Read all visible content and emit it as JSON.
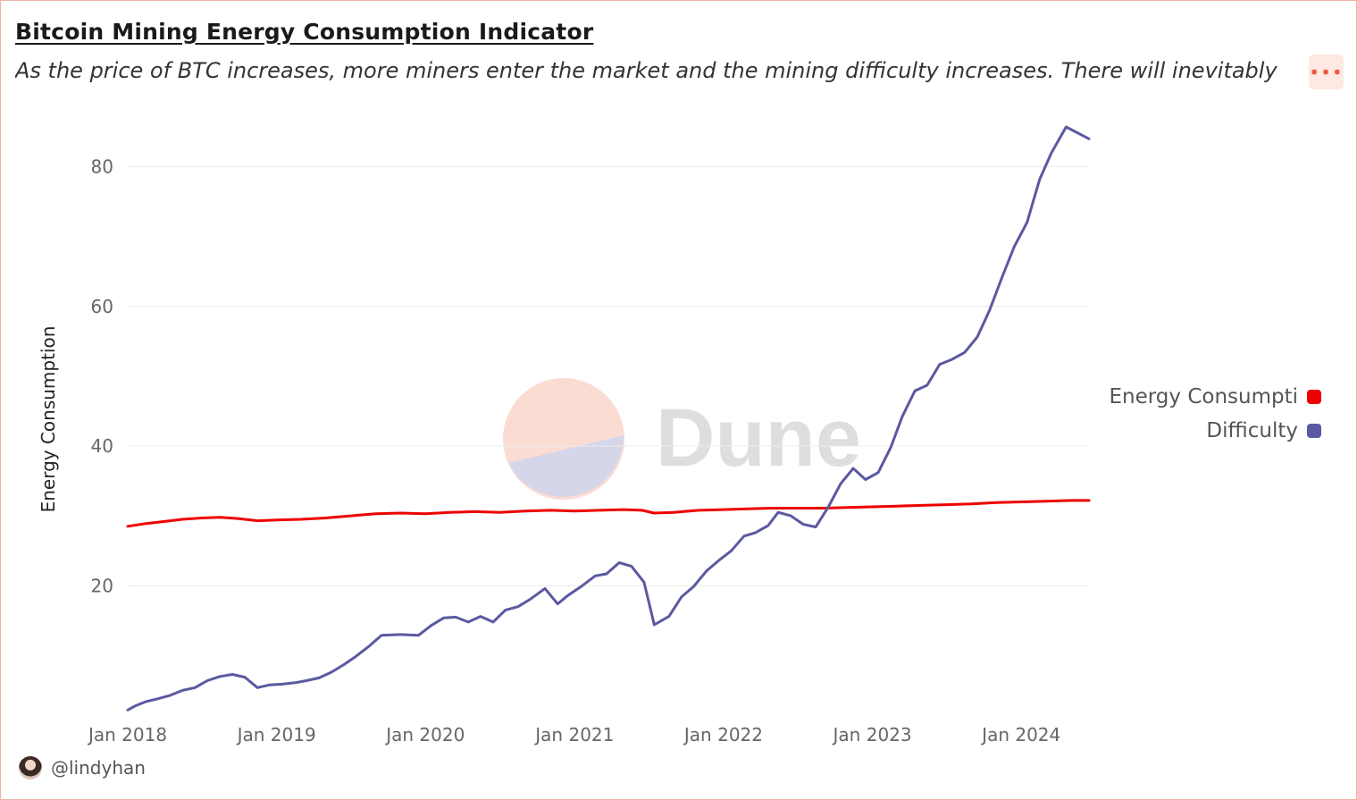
{
  "header": {
    "title": "Bitcoin Mining Energy Consumption Indicator",
    "subtitle": "As the price of BTC increases, more miners enter the market and the mining difficulty increases. There will inevitably",
    "menu_label": "•••"
  },
  "watermark": {
    "text": "Dune"
  },
  "footer": {
    "author": "@lindyhan"
  },
  "colors": {
    "accent": "#ee5a3b",
    "energy": "#ee0000",
    "difficulty": "#5a59a1",
    "grid": "#ececec",
    "axis_text": "#666666"
  },
  "chart_data": {
    "type": "line",
    "ylabel": "Energy Consumption",
    "ylim": [
      0,
      90
    ],
    "yticks": [
      20,
      40,
      60,
      80
    ],
    "x_ticks": [
      {
        "date": "2018-01-01",
        "label": "Jan 2018"
      },
      {
        "date": "2019-01-01",
        "label": "Jan 2019"
      },
      {
        "date": "2020-01-01",
        "label": "Jan 2020"
      },
      {
        "date": "2021-01-01",
        "label": "Jan 2021"
      },
      {
        "date": "2022-01-01",
        "label": "Jan 2022"
      },
      {
        "date": "2023-01-01",
        "label": "Jan 2023"
      },
      {
        "date": "2024-01-01",
        "label": "Jan 2024"
      }
    ],
    "grid": true,
    "legend_position": "right",
    "series": [
      {
        "name": "Energy Consumpti",
        "color": "#ee0000",
        "points": [
          [
            "2018-01-01",
            28.5
          ],
          [
            "2018-02-15",
            28.9
          ],
          [
            "2018-04-01",
            29.2
          ],
          [
            "2018-05-15",
            29.5
          ],
          [
            "2018-07-01",
            29.7
          ],
          [
            "2018-08-15",
            29.8
          ],
          [
            "2018-10-01",
            29.6
          ],
          [
            "2018-11-15",
            29.3
          ],
          [
            "2019-01-01",
            29.4
          ],
          [
            "2019-03-01",
            29.5
          ],
          [
            "2019-05-01",
            29.7
          ],
          [
            "2019-07-01",
            30.0
          ],
          [
            "2019-09-01",
            30.3
          ],
          [
            "2019-11-01",
            30.4
          ],
          [
            "2020-01-01",
            30.3
          ],
          [
            "2020-03-01",
            30.5
          ],
          [
            "2020-05-01",
            30.6
          ],
          [
            "2020-07-01",
            30.5
          ],
          [
            "2020-09-01",
            30.7
          ],
          [
            "2020-11-01",
            30.8
          ],
          [
            "2021-01-01",
            30.7
          ],
          [
            "2021-03-01",
            30.8
          ],
          [
            "2021-05-01",
            30.9
          ],
          [
            "2021-06-15",
            30.8
          ],
          [
            "2021-07-15",
            30.4
          ],
          [
            "2021-09-01",
            30.5
          ],
          [
            "2021-11-01",
            30.8
          ],
          [
            "2022-01-01",
            30.9
          ],
          [
            "2022-03-01",
            31.0
          ],
          [
            "2022-05-01",
            31.1
          ],
          [
            "2022-07-01",
            31.1
          ],
          [
            "2022-09-01",
            31.1
          ],
          [
            "2022-11-01",
            31.2
          ],
          [
            "2023-01-01",
            31.3
          ],
          [
            "2023-03-01",
            31.4
          ],
          [
            "2023-05-01",
            31.5
          ],
          [
            "2023-07-01",
            31.6
          ],
          [
            "2023-09-01",
            31.7
          ],
          [
            "2023-11-01",
            31.9
          ],
          [
            "2024-01-01",
            32.0
          ],
          [
            "2024-03-01",
            32.1
          ],
          [
            "2024-05-01",
            32.2
          ],
          [
            "2024-06-15",
            32.2
          ]
        ]
      },
      {
        "name": "Difficulty",
        "color": "#5a59a1",
        "points": [
          [
            "2018-01-01",
            2.2
          ],
          [
            "2018-01-20",
            2.8
          ],
          [
            "2018-02-15",
            3.4
          ],
          [
            "2018-03-15",
            3.8
          ],
          [
            "2018-04-15",
            4.3
          ],
          [
            "2018-05-15",
            5.0
          ],
          [
            "2018-06-15",
            5.4
          ],
          [
            "2018-07-15",
            6.4
          ],
          [
            "2018-08-15",
            7.0
          ],
          [
            "2018-09-15",
            7.3
          ],
          [
            "2018-10-15",
            6.9
          ],
          [
            "2018-11-15",
            5.4
          ],
          [
            "2018-12-15",
            5.8
          ],
          [
            "2019-01-15",
            5.9
          ],
          [
            "2019-02-15",
            6.1
          ],
          [
            "2019-03-15",
            6.4
          ],
          [
            "2019-04-15",
            6.8
          ],
          [
            "2019-05-15",
            7.6
          ],
          [
            "2019-06-15",
            8.7
          ],
          [
            "2019-07-15",
            9.9
          ],
          [
            "2019-08-15",
            11.3
          ],
          [
            "2019-09-15",
            12.9
          ],
          [
            "2019-11-01",
            13.0
          ],
          [
            "2019-12-15",
            12.9
          ],
          [
            "2020-01-15",
            14.3
          ],
          [
            "2020-02-15",
            15.4
          ],
          [
            "2020-03-15",
            15.5
          ],
          [
            "2020-04-15",
            14.8
          ],
          [
            "2020-05-15",
            15.6
          ],
          [
            "2020-06-15",
            14.8
          ],
          [
            "2020-07-15",
            16.5
          ],
          [
            "2020-08-15",
            17.0
          ],
          [
            "2020-09-15",
            18.1
          ],
          [
            "2020-10-20",
            19.6
          ],
          [
            "2020-11-20",
            17.4
          ],
          [
            "2020-12-15",
            18.6
          ],
          [
            "2021-01-15",
            19.8
          ],
          [
            "2021-02-20",
            21.4
          ],
          [
            "2021-03-20",
            21.7
          ],
          [
            "2021-04-20",
            23.3
          ],
          [
            "2021-05-20",
            22.8
          ],
          [
            "2021-06-20",
            20.5
          ],
          [
            "2021-07-15",
            14.4
          ],
          [
            "2021-08-20",
            15.6
          ],
          [
            "2021-09-20",
            18.4
          ],
          [
            "2021-10-20",
            19.9
          ],
          [
            "2021-11-20",
            22.1
          ],
          [
            "2021-12-20",
            23.6
          ],
          [
            "2022-01-20",
            25.0
          ],
          [
            "2022-02-20",
            27.1
          ],
          [
            "2022-03-20",
            27.6
          ],
          [
            "2022-04-20",
            28.6
          ],
          [
            "2022-05-15",
            30.5
          ],
          [
            "2022-06-15",
            30.0
          ],
          [
            "2022-07-15",
            28.8
          ],
          [
            "2022-08-15",
            28.4
          ],
          [
            "2022-09-15",
            31.3
          ],
          [
            "2022-10-15",
            34.6
          ],
          [
            "2022-11-15",
            36.8
          ],
          [
            "2022-12-15",
            35.2
          ],
          [
            "2023-01-15",
            36.2
          ],
          [
            "2023-02-15",
            39.8
          ],
          [
            "2023-03-15",
            44.2
          ],
          [
            "2023-04-15",
            47.9
          ],
          [
            "2023-05-15",
            48.7
          ],
          [
            "2023-06-15",
            51.7
          ],
          [
            "2023-07-15",
            52.4
          ],
          [
            "2023-08-15",
            53.4
          ],
          [
            "2023-09-15",
            55.6
          ],
          [
            "2023-10-15",
            59.4
          ],
          [
            "2023-11-15",
            64.2
          ],
          [
            "2023-12-15",
            68.6
          ],
          [
            "2024-01-15",
            72.0
          ],
          [
            "2024-02-15",
            78.2
          ],
          [
            "2024-03-15",
            82.0
          ],
          [
            "2024-04-20",
            85.7
          ],
          [
            "2024-06-15",
            84.0
          ]
        ]
      }
    ]
  }
}
